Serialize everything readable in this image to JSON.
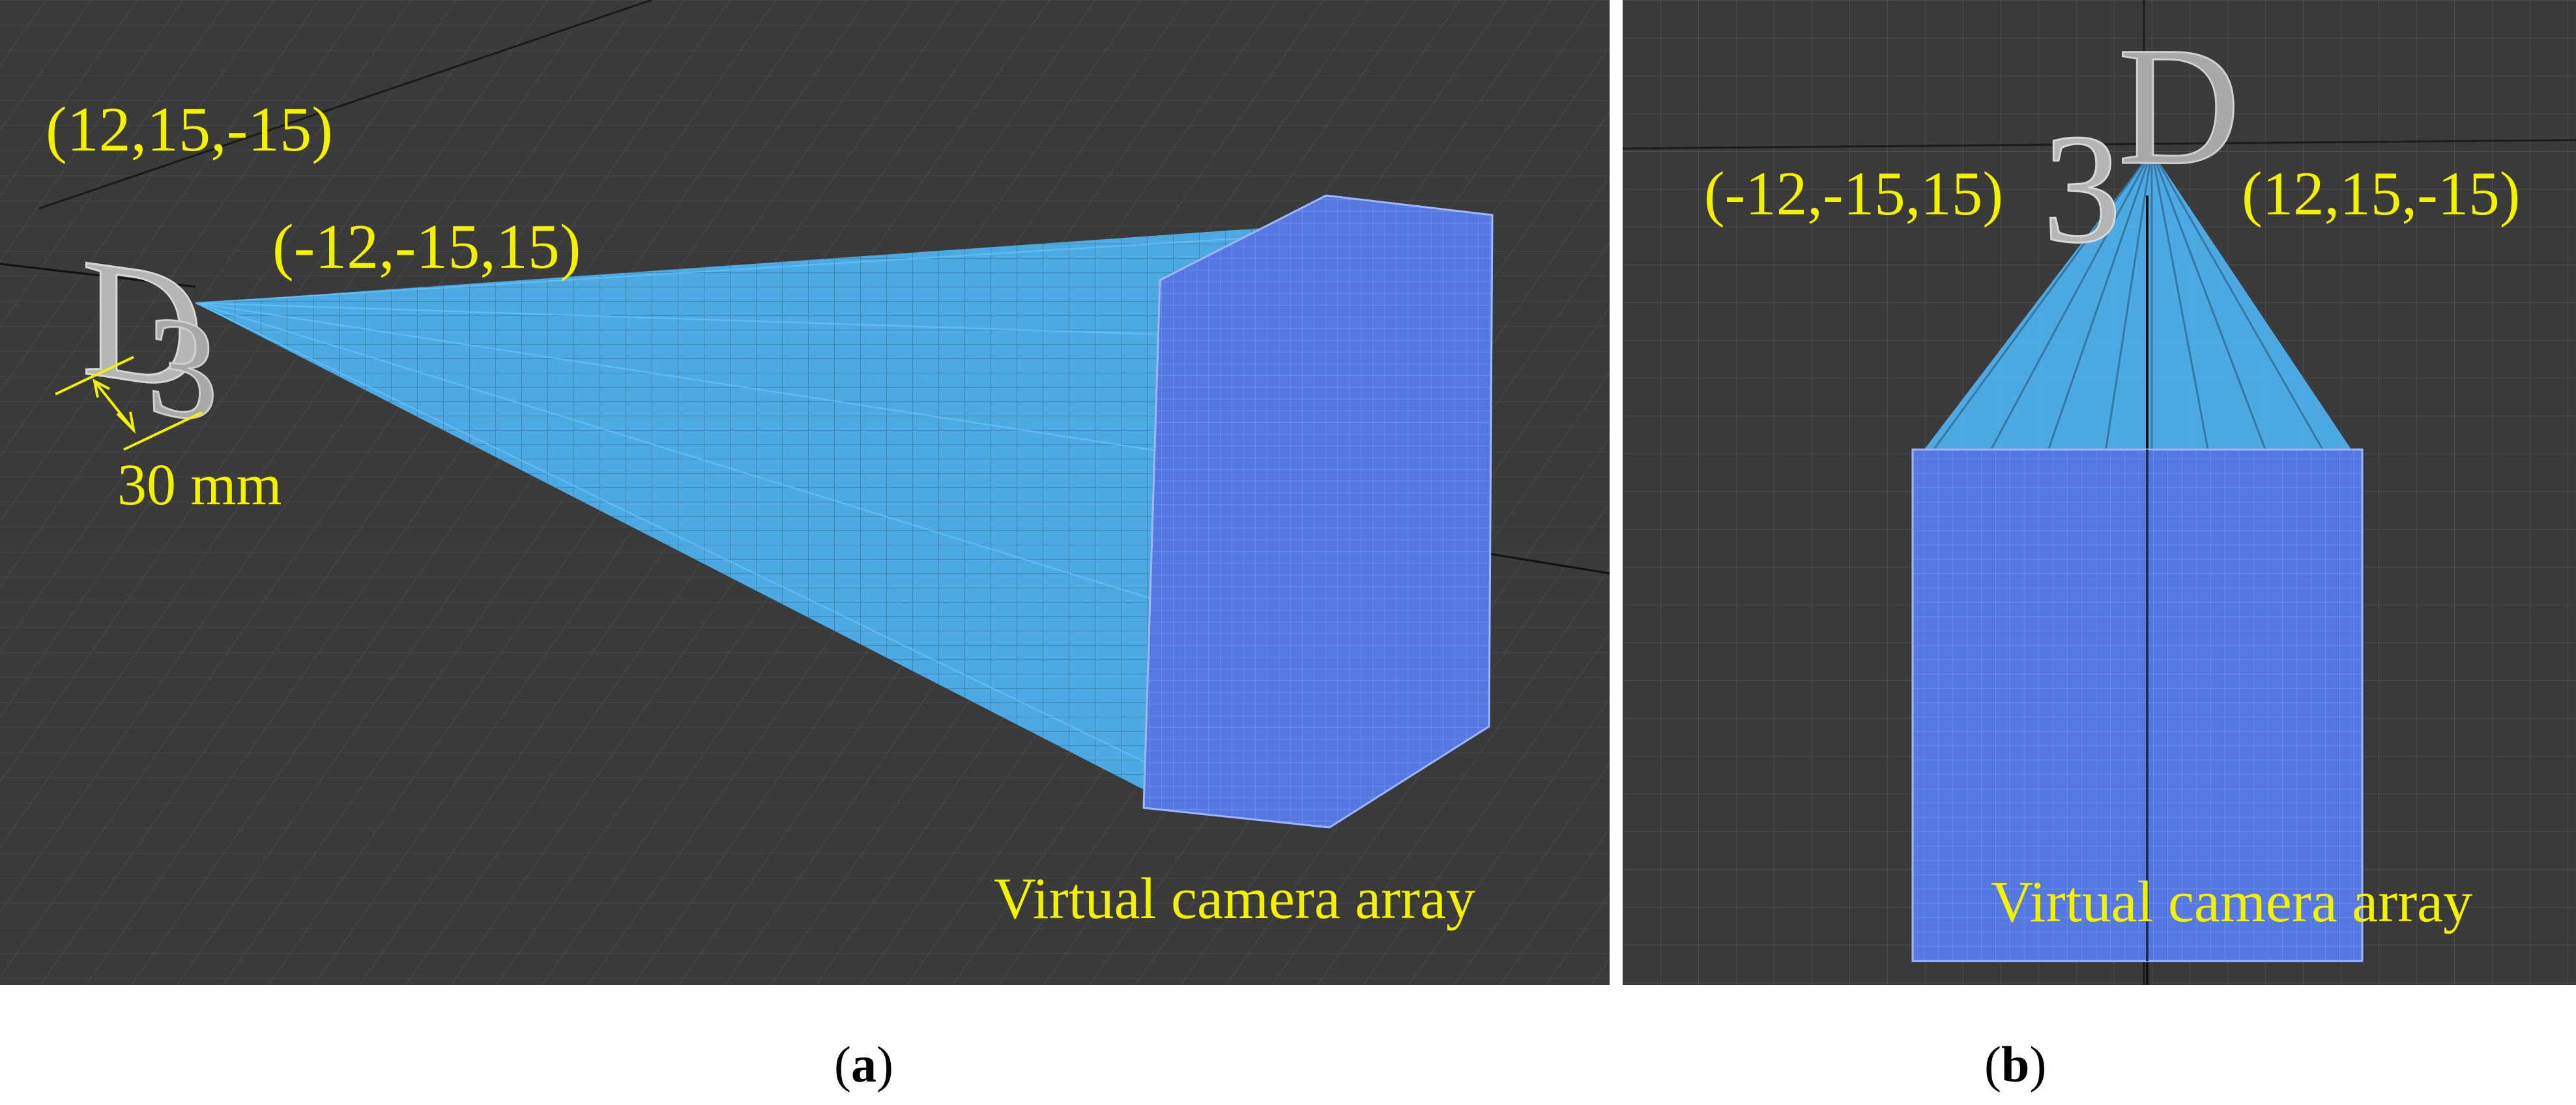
{
  "panels": [
    {
      "id": "a",
      "caption_letter": "a",
      "labels": {
        "coord_top": "(12,15,-15)",
        "coord_near": "(-12,-15,15)",
        "dimension": "30 mm",
        "array": "Virtual camera array"
      },
      "object_letters": [
        "D",
        "3"
      ]
    },
    {
      "id": "b",
      "caption_letter": "b",
      "labels": {
        "coord_left": "(-12,-15,15)",
        "coord_right": "(12,15,-15)",
        "array": "Virtual camera array"
      },
      "object_letters": [
        "3",
        "D"
      ]
    }
  ],
  "colors": {
    "background": "#3a3a3a",
    "grid": "#4d4d4d",
    "ray": "#4fb3f0",
    "camera": "#5577e0",
    "label": "#f2f200",
    "object": "#b5b5b5"
  }
}
